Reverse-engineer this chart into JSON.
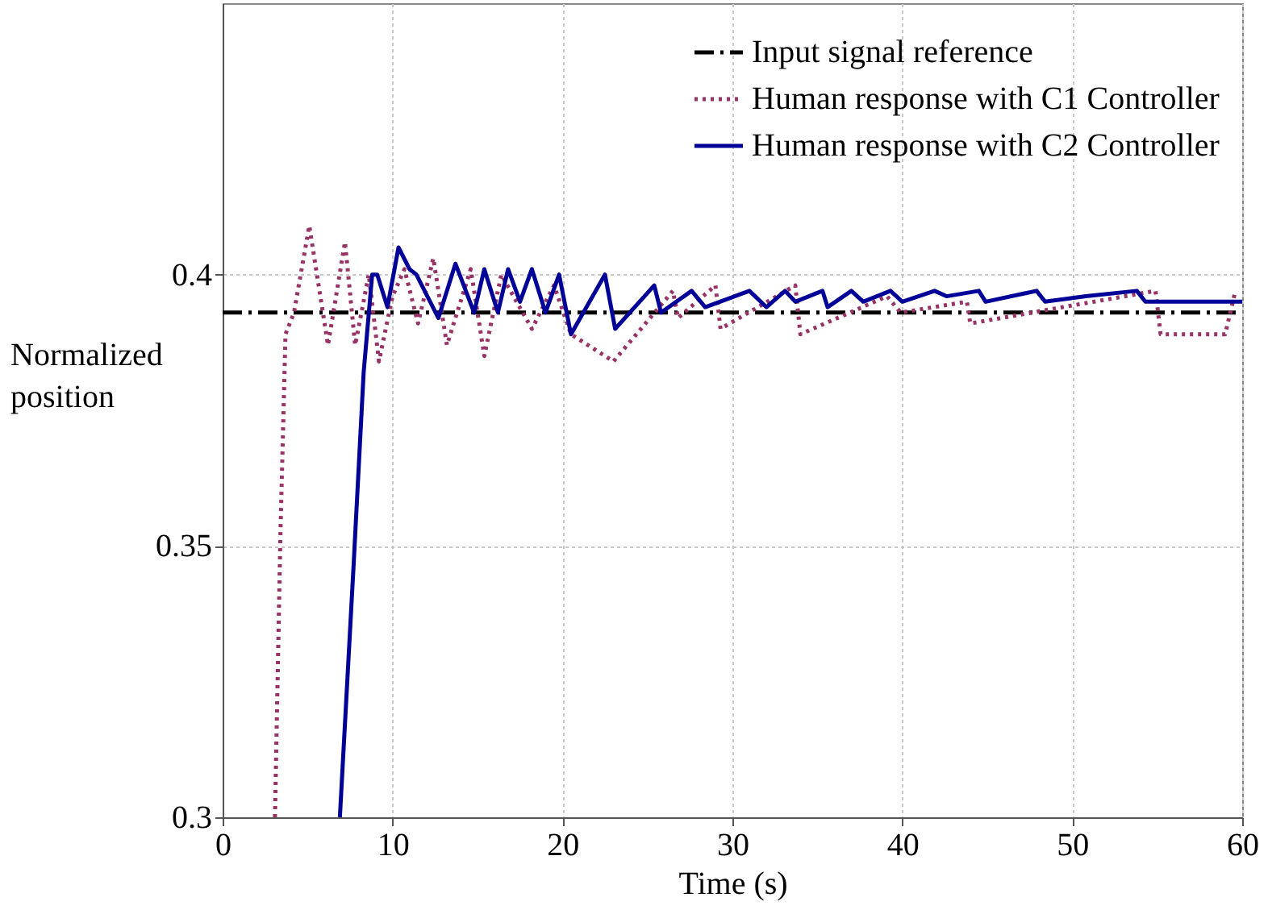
{
  "chart_data": {
    "type": "line",
    "xlabel": "Time (s)",
    "ylabel": "Normalized position",
    "xlim": [
      0,
      60
    ],
    "xticks": [
      0,
      10,
      20,
      30,
      40,
      50,
      60
    ],
    "ylim": [
      0.3,
      0.45
    ],
    "yticks": [
      0.3,
      0.35,
      0.4
    ],
    "grid": true,
    "legend": "top right",
    "marker": "none",
    "series": [
      {
        "name": "Input signal reference",
        "color": "#000000",
        "line_style": "dashed",
        "x": [
          0,
          60
        ],
        "values": [
          0.393,
          0.393
        ]
      },
      {
        "name": "Human response with C1 Controller",
        "color": "#993366",
        "line_style": "dotted",
        "x": [
          3.08,
          3.4,
          3.7,
          4.2,
          5.1,
          6.2,
          7.2,
          7.8,
          8.6,
          9.2,
          10.0,
          10.7,
          11.5,
          12.4,
          13.2,
          14.6,
          15.4,
          16.4,
          18.2,
          19.5,
          20.5,
          23.0,
          26.5,
          26.8,
          29.0,
          29.3,
          33.7,
          34.0,
          39.1,
          39.9,
          43.8,
          44.0,
          54.9,
          55.2,
          59.0,
          59.6
        ],
        "values": [
          0.3,
          0.352,
          0.389,
          0.393,
          0.409,
          0.387,
          0.406,
          0.387,
          0.4,
          0.384,
          0.396,
          0.401,
          0.391,
          0.403,
          0.387,
          0.401,
          0.385,
          0.4,
          0.39,
          0.398,
          0.389,
          0.384,
          0.397,
          0.392,
          0.398,
          0.39,
          0.398,
          0.389,
          0.396,
          0.393,
          0.395,
          0.391,
          0.397,
          0.389,
          0.389,
          0.397
        ]
      },
      {
        "name": "Human response with C2 Controller",
        "color": "#000099",
        "line_style": "solid",
        "x": [
          6.9,
          7.7,
          8.3,
          8.8,
          9.1,
          9.7,
          10.35,
          11.0,
          11.4,
          12.7,
          13.7,
          14.8,
          15.4,
          16.2,
          16.8,
          17.5,
          18.2,
          19.0,
          19.8,
          20.5,
          22.5,
          23.1,
          25.4,
          25.8,
          27.6,
          28.4,
          31.0,
          32.0,
          33.1,
          33.7,
          35.3,
          35.6,
          37.0,
          37.7,
          39.3,
          40.0,
          41.9,
          42.6,
          44.5,
          44.9,
          47.9,
          48.4,
          50.8,
          53.8,
          54.3,
          57.7,
          60
        ],
        "values": [
          0.3,
          0.346,
          0.382,
          0.4,
          0.4,
          0.394,
          0.405,
          0.401,
          0.4,
          0.392,
          0.402,
          0.393,
          0.401,
          0.393,
          0.401,
          0.395,
          0.401,
          0.393,
          0.4,
          0.389,
          0.4,
          0.39,
          0.398,
          0.393,
          0.397,
          0.394,
          0.397,
          0.394,
          0.397,
          0.395,
          0.397,
          0.394,
          0.397,
          0.395,
          0.397,
          0.395,
          0.397,
          0.396,
          0.397,
          0.395,
          0.397,
          0.395,
          0.396,
          0.397,
          0.395,
          0.395,
          0.395
        ]
      }
    ]
  }
}
